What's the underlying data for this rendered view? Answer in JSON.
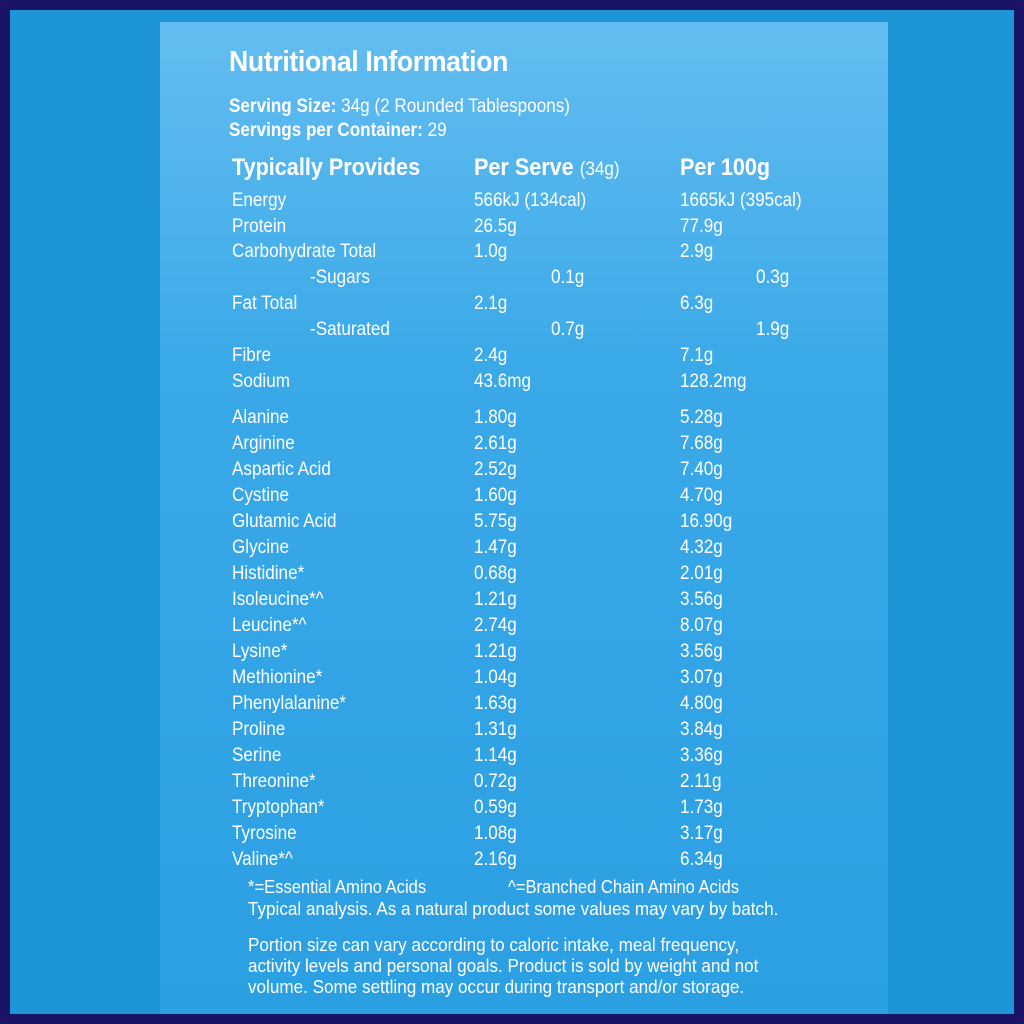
{
  "title": "Nutritional Information",
  "serving_size": {
    "label": "Serving Size:",
    "value": "34g (2 Rounded Tablespoons)"
  },
  "servings_per_container": {
    "label": "Servings per Container:",
    "value": "29"
  },
  "headers": {
    "col1": "Typically Provides",
    "col2": "Per Serve",
    "col2_sub": "(34g)",
    "col3": "Per 100g"
  },
  "nutrients": [
    {
      "name": "Energy",
      "per_serve": "566kJ (134cal)",
      "per_100g": "1665kJ (395cal)"
    },
    {
      "name": "Protein",
      "per_serve": "26.5g",
      "per_100g": "77.9g"
    },
    {
      "name": "Carbohydrate Total",
      "per_serve": "1.0g",
      "per_100g": "2.9g"
    },
    {
      "name": "-Sugars",
      "per_serve": "0.1g",
      "per_100g": "0.3g"
    },
    {
      "name": "Fat Total",
      "per_serve": "2.1g",
      "per_100g": "6.3g"
    },
    {
      "name": "-Saturated",
      "per_serve": "0.7g",
      "per_100g": "1.9g"
    },
    {
      "name": "Fibre",
      "per_serve": "2.4g",
      "per_100g": "7.1g"
    },
    {
      "name": "Sodium",
      "per_serve": "43.6mg",
      "per_100g": "128.2mg"
    }
  ],
  "amino_acids": [
    {
      "name": "Alanine",
      "per_serve": "1.80g",
      "per_100g": "5.28g"
    },
    {
      "name": "Arginine",
      "per_serve": "2.61g",
      "per_100g": "7.68g"
    },
    {
      "name": "Aspartic Acid",
      "per_serve": "2.52g",
      "per_100g": "7.40g"
    },
    {
      "name": "Cystine",
      "per_serve": "1.60g",
      "per_100g": "4.70g"
    },
    {
      "name": "Glutamic Acid",
      "per_serve": "5.75g",
      "per_100g": "16.90g"
    },
    {
      "name": "Glycine",
      "per_serve": "1.47g",
      "per_100g": "4.32g"
    },
    {
      "name": "Histidine*",
      "per_serve": "0.68g",
      "per_100g": "2.01g"
    },
    {
      "name": "Isoleucine*^",
      "per_serve": "1.21g",
      "per_100g": "3.56g"
    },
    {
      "name": "Leucine*^",
      "per_serve": "2.74g",
      "per_100g": "8.07g"
    },
    {
      "name": "Lysine*",
      "per_serve": "1.21g",
      "per_100g": "3.56g"
    },
    {
      "name": "Methionine*",
      "per_serve": "1.04g",
      "per_100g": "3.07g"
    },
    {
      "name": "Phenylalanine*",
      "per_serve": "1.63g",
      "per_100g": "4.80g"
    },
    {
      "name": "Proline",
      "per_serve": "1.31g",
      "per_100g": "3.84g"
    },
    {
      "name": "Serine",
      "per_serve": "1.14g",
      "per_100g": "3.36g"
    },
    {
      "name": "Threonine*",
      "per_serve": "0.72g",
      "per_100g": "2.11g"
    },
    {
      "name": "Tryptophan*",
      "per_serve": "0.59g",
      "per_100g": "1.73g"
    },
    {
      "name": "Tyrosine",
      "per_serve": "1.08g",
      "per_100g": "3.17g"
    },
    {
      "name": "Valine*^",
      "per_serve": "2.16g",
      "per_100g": "6.34g"
    }
  ],
  "legend": {
    "essential": "*=Essential Amino Acids",
    "branched": "^=Branched Chain Amino Acids"
  },
  "notes": {
    "analysis": "Typical analysis. As a natural product some values may vary by batch.",
    "portion": "Portion size can vary according to caloric intake, meal frequency, activity levels and personal goals. Product is sold by weight and not volume. Some settling may occur during transport and/or storage."
  },
  "colors": {
    "background": "#1d95d6",
    "border": "#1a1466",
    "text": "#ffffff"
  }
}
